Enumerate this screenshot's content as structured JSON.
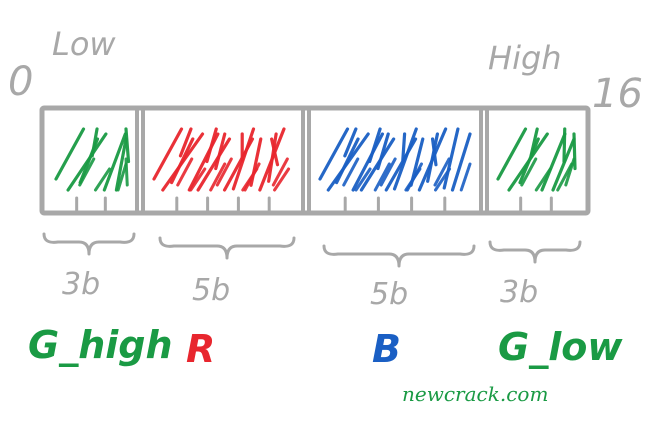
{
  "scale": {
    "start": "0",
    "end": "16",
    "low_label": "Low",
    "high_label": "High"
  },
  "fields": [
    {
      "id": "g-high",
      "label": "G_high",
      "bits": "3b",
      "color": "#1a9a44",
      "nbits": 3
    },
    {
      "id": "r",
      "label": "R",
      "bits": "5b",
      "color": "#e8262e",
      "nbits": 5
    },
    {
      "id": "b",
      "label": "B",
      "bits": "5b",
      "color": "#1a5fc4",
      "nbits": 5
    },
    {
      "id": "g-low",
      "label": "G_low",
      "bits": "3b",
      "color": "#1a9a44",
      "nbits": 3
    }
  ],
  "watermark": "newcrack.com",
  "colors": {
    "outline": "#a8a8a8"
  }
}
